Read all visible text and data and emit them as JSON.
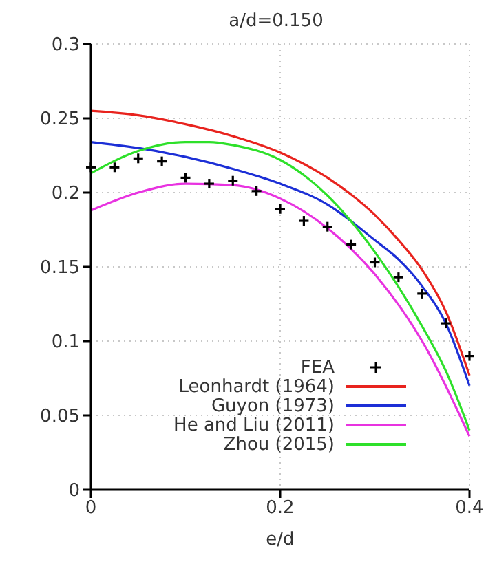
{
  "chart_data": {
    "type": "line",
    "title": "a/d=0.150",
    "xlabel": "e/d",
    "xlim": [
      0,
      0.4
    ],
    "xticks": [
      0,
      0.2,
      0.4
    ],
    "ylim": [
      0,
      0.3
    ],
    "yticks": [
      0,
      0.05,
      0.1,
      0.15,
      0.2,
      0.25,
      0.3
    ],
    "grid": true,
    "legend": "bottom right",
    "marker": "none",
    "series": [
      {
        "name": "FEA",
        "type": "scatter",
        "marker": "cross",
        "color": "#000000",
        "x": [
          0,
          0.025,
          0.05,
          0.075,
          0.1,
          0.125,
          0.15,
          0.175,
          0.2,
          0.225,
          0.25,
          0.275,
          0.3,
          0.325,
          0.35,
          0.375,
          0.4
        ],
        "values": [
          0.217,
          0.217,
          0.223,
          0.221,
          0.21,
          0.206,
          0.208,
          0.201,
          0.189,
          0.181,
          0.177,
          0.165,
          0.153,
          0.143,
          0.132,
          0.112,
          0.09
        ]
      },
      {
        "name": "Leonhardt (1964)",
        "color": "#e8231e",
        "x": [
          0,
          0.05,
          0.1,
          0.15,
          0.2,
          0.25,
          0.3,
          0.325,
          0.35,
          0.375,
          0.4
        ],
        "values": [
          0.255,
          0.252,
          0.246,
          0.238,
          0.227,
          0.21,
          0.185,
          0.168,
          0.148,
          0.12,
          0.077
        ]
      },
      {
        "name": "Guyon (1973)",
        "color": "#1c2fd6",
        "x": [
          0,
          0.05,
          0.1,
          0.15,
          0.2,
          0.25,
          0.3,
          0.325,
          0.35,
          0.375,
          0.4
        ],
        "values": [
          0.234,
          0.23,
          0.224,
          0.216,
          0.206,
          0.192,
          0.168,
          0.155,
          0.137,
          0.112,
          0.07
        ]
      },
      {
        "name": "He and Liu (2011)",
        "color": "#e833e0",
        "x": [
          0,
          0.05,
          0.1,
          0.15,
          0.2,
          0.25,
          0.3,
          0.35,
          0.4
        ],
        "values": [
          0.188,
          0.2,
          0.206,
          0.205,
          0.196,
          0.176,
          0.145,
          0.1,
          0.036
        ]
      },
      {
        "name": "Zhou (2015)",
        "color": "#2ee02a",
        "x": [
          0,
          0.05,
          0.1,
          0.125,
          0.15,
          0.2,
          0.25,
          0.3,
          0.35,
          0.375,
          0.4
        ],
        "values": [
          0.213,
          0.228,
          0.234,
          0.234,
          0.232,
          0.222,
          0.198,
          0.16,
          0.11,
          0.08,
          0.04
        ]
      }
    ]
  }
}
